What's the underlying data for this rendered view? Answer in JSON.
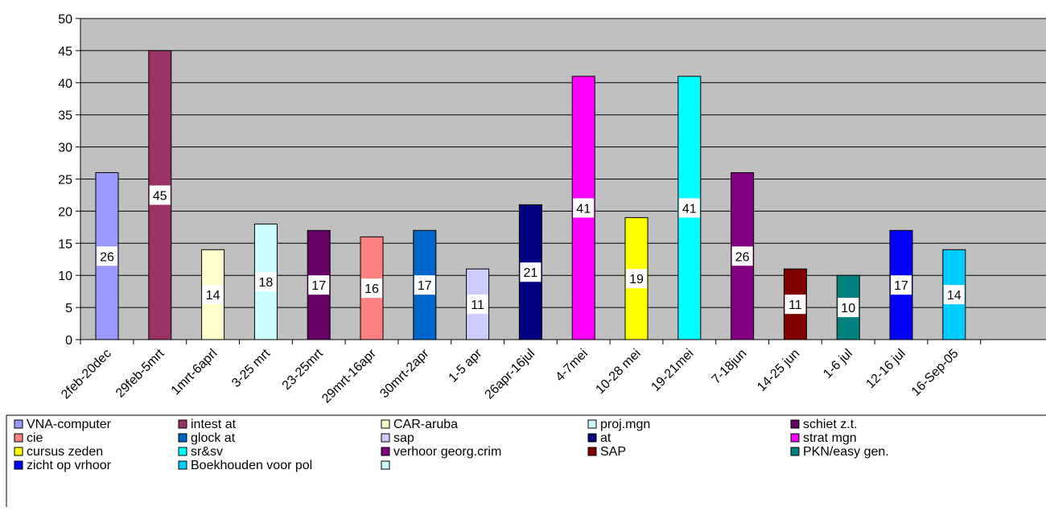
{
  "chart_data": {
    "type": "bar",
    "title": "",
    "xlabel": "",
    "ylabel": "",
    "ylim": [
      0,
      50
    ],
    "yticks": [
      0,
      5,
      10,
      15,
      20,
      25,
      30,
      35,
      40,
      45,
      50
    ],
    "grid": true,
    "plot_background": "#C0C0C0",
    "legend_placement": "bottom",
    "categories": [
      "2feb-20dec",
      "29feb-5mrt",
      "1mrt-6aprl",
      "3-25 mrt",
      "23-25mrt",
      "29mrt-16apr",
      "30mrt-2apr",
      "1-5 apr",
      "26apr-16jul",
      "4-7mei",
      "10-28 mei",
      "19-21mei",
      "7-18jun",
      "14-25 jun",
      "1-6 jul",
      "12-16 jul",
      "16-Sep-05"
    ],
    "values": [
      26,
      45,
      14,
      18,
      17,
      16,
      17,
      11,
      21,
      41,
      19,
      41,
      26,
      11,
      10,
      17,
      14
    ],
    "data_labels": [
      "26",
      "45",
      "14",
      "18",
      "17",
      "16",
      "17",
      "11",
      "21",
      "41",
      "19",
      "41",
      "26",
      "11",
      "10",
      "17",
      "14"
    ],
    "bar_colors": [
      "#9999FF",
      "#993366",
      "#FFFFCC",
      "#CCFFFF",
      "#660066",
      "#FF8080",
      "#0066CC",
      "#CCCCFF",
      "#000080",
      "#FF00FF",
      "#FFFF00",
      "#00FFFF",
      "#800080",
      "#800000",
      "#008080",
      "#0000FF",
      "#00CCFF"
    ],
    "legend": [
      {
        "name": "VNA-computer",
        "color": "#9999FF"
      },
      {
        "name": "intest at",
        "color": "#993366"
      },
      {
        "name": "CAR-aruba",
        "color": "#FFFFCC"
      },
      {
        "name": "proj.mgn",
        "color": "#CCFFFF"
      },
      {
        "name": "schiet z.t.",
        "color": "#660066"
      },
      {
        "name": "cie",
        "color": "#FF8080"
      },
      {
        "name": "glock at",
        "color": "#0066CC"
      },
      {
        "name": "sap",
        "color": "#CCCCFF"
      },
      {
        "name": "at",
        "color": "#000080"
      },
      {
        "name": "strat mgn",
        "color": "#FF00FF"
      },
      {
        "name": "cursus zeden",
        "color": "#FFFF00"
      },
      {
        "name": "sr&sv",
        "color": "#00FFFF"
      },
      {
        "name": "verhoor georg.crim",
        "color": "#800080"
      },
      {
        "name": "SAP",
        "color": "#800000"
      },
      {
        "name": "PKN/easy gen.",
        "color": "#008080"
      },
      {
        "name": "zicht op vrhoor",
        "color": "#0000FF"
      },
      {
        "name": "Boekhouden voor pol",
        "color": "#00CCFF"
      },
      {
        "name": "",
        "color": "#CCFFFF"
      }
    ]
  }
}
